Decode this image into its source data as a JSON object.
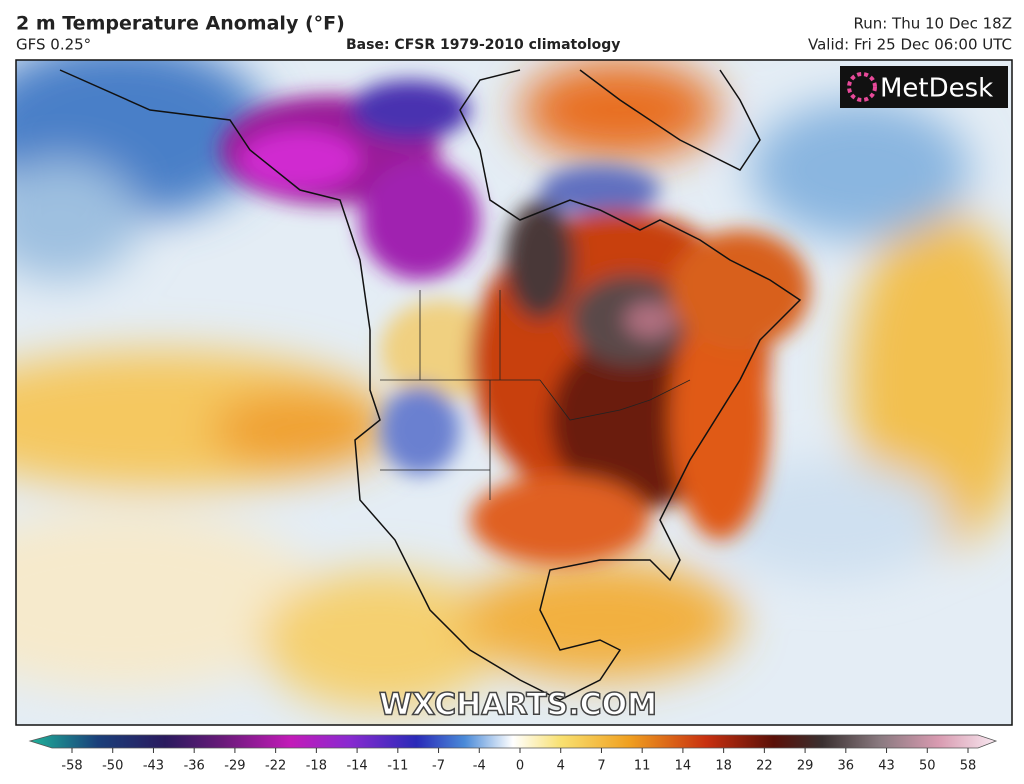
{
  "header": {
    "title": "2 m Temperature Anomaly (°F)",
    "model": "GFS 0.25°",
    "base": "Base: CFSR 1979-2010 climatology",
    "run": "Run: Thu 10 Dec 18Z",
    "valid": "Valid: Fri 25 Dec 06:00 UTC"
  },
  "logo": "MetDesk",
  "watermark": "WXCHARTS.COM",
  "colorbar": {
    "ticks": [
      -58,
      -50,
      -43,
      -36,
      -29,
      -22,
      -18,
      -14,
      -11,
      -7,
      -4,
      0,
      4,
      7,
      11,
      14,
      18,
      22,
      29,
      36,
      43,
      50,
      58
    ]
  }
}
